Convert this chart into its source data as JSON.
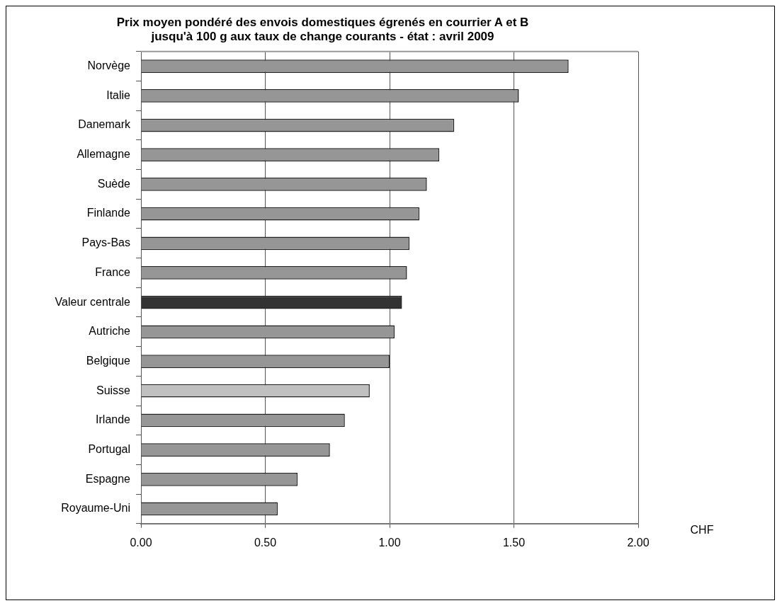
{
  "chart_data": {
    "type": "bar",
    "orientation": "horizontal",
    "title": "Prix moyen pondéré des envois domestiques égrenés en courrier A et B\njusqu'à 100 g aux taux de change courants - état : avril 2009",
    "xlabel": "CHF",
    "categories": [
      "Norvège",
      "Italie",
      "Danemark",
      "Allemagne",
      "Suède",
      "Finlande",
      "Pays-Bas",
      "France",
      "Valeur centrale",
      "Autriche",
      "Belgique",
      "Suisse",
      "Irlande",
      "Portugal",
      "Espagne",
      "Royaume-Uni"
    ],
    "values": [
      1.72,
      1.52,
      1.26,
      1.2,
      1.15,
      1.12,
      1.08,
      1.07,
      1.05,
      1.02,
      1.0,
      0.92,
      0.82,
      0.76,
      0.63,
      0.55
    ],
    "colors": [
      "#969696",
      "#969696",
      "#969696",
      "#969696",
      "#969696",
      "#969696",
      "#969696",
      "#969696",
      "#333333",
      "#969696",
      "#969696",
      "#c0c0c0",
      "#969696",
      "#969696",
      "#969696",
      "#969696"
    ],
    "xlim": [
      0,
      2
    ],
    "xticks": [
      {
        "value": 0,
        "label": "0.00"
      },
      {
        "value": 0.5,
        "label": "0.50"
      },
      {
        "value": 1,
        "label": "1.00"
      },
      {
        "value": 1.5,
        "label": "1.50"
      },
      {
        "value": 2,
        "label": "2.00"
      }
    ],
    "grid": "x",
    "legend": false
  }
}
